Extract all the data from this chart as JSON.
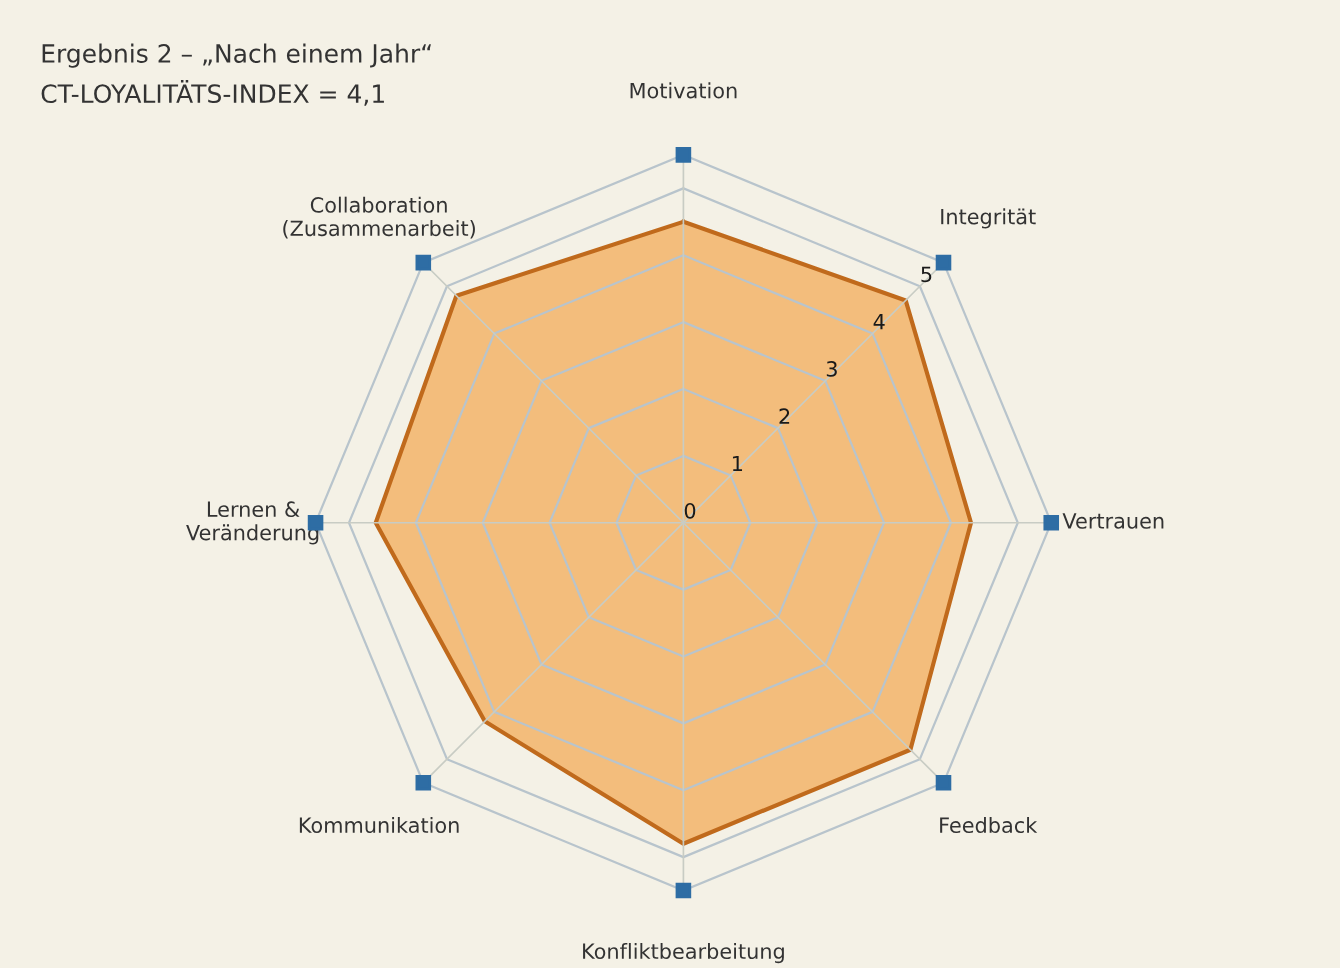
{
  "chart_data": {
    "type": "radar",
    "title": "Ergebnis 2 – „Nach einem Jahr“",
    "subtitle": "CT-LOYALITÄTS-INDEX = 4,1",
    "categories": [
      "Motivation",
      "Integrität",
      "Vertrauen",
      "Feedback",
      "Konfliktbearbeitung",
      "Kommunikation",
      "Lernen &\nVeränderung",
      "Collaboration\n(Zusammenarbeit)"
    ],
    "series": [
      {
        "color": "#f2b468",
        "values": [
          4.5,
          4.7,
          4.3,
          4.8,
          4.8,
          4.2,
          4.6,
          4.8
        ]
      }
    ],
    "ylim": [
      0,
      5.5
    ],
    "yticks": [
      0,
      1,
      2,
      3,
      4,
      5
    ],
    "grid": true,
    "marker": "square"
  }
}
